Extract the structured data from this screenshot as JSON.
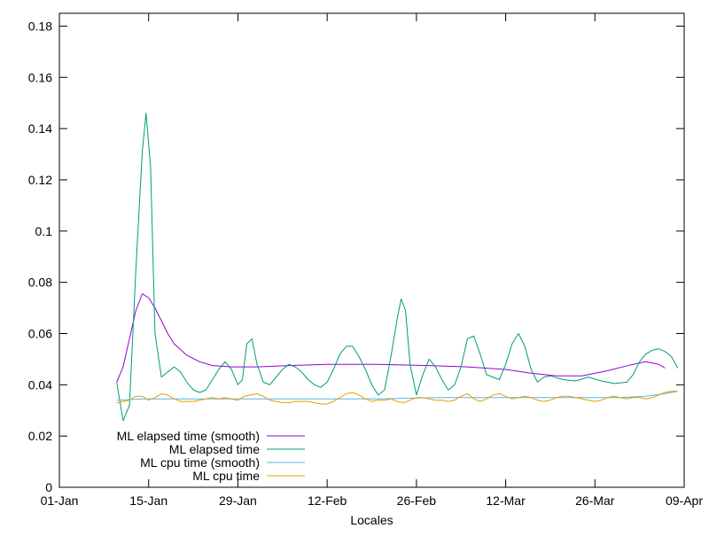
{
  "chart_data": {
    "type": "line",
    "title": "",
    "xlabel": "Locales",
    "ylabel": "",
    "xlim": [
      "2025-01-01",
      "2025-04-09"
    ],
    "ylim": [
      0,
      0.185
    ],
    "x_ticks": [
      {
        "date": "2025-01-01",
        "label": "01-Jan"
      },
      {
        "date": "2025-01-15",
        "label": "15-Jan"
      },
      {
        "date": "2025-01-29",
        "label": "29-Jan"
      },
      {
        "date": "2025-02-12",
        "label": "12-Feb"
      },
      {
        "date": "2025-02-26",
        "label": "26-Feb"
      },
      {
        "date": "2025-03-12",
        "label": "12-Mar"
      },
      {
        "date": "2025-03-26",
        "label": "26-Mar"
      },
      {
        "date": "2025-04-09",
        "label": "09-Apr"
      }
    ],
    "y_ticks": [
      {
        "value": 0,
        "label": "0"
      },
      {
        "value": 0.02,
        "label": "0.02"
      },
      {
        "value": 0.04,
        "label": "0.04"
      },
      {
        "value": 0.06,
        "label": "0.06"
      },
      {
        "value": 0.08,
        "label": "0.08"
      },
      {
        "value": 0.1,
        "label": "0.1"
      },
      {
        "value": 0.12,
        "label": "0.12"
      },
      {
        "value": 0.14,
        "label": "0.14"
      },
      {
        "value": 0.16,
        "label": "0.16"
      },
      {
        "value": 0.18,
        "label": "0.18"
      }
    ],
    "grid": false,
    "legend_position": "bottom-left",
    "series": [
      {
        "name": "ML elapsed time (smooth)",
        "color": "#9400d3",
        "points": [
          [
            "2025-01-10",
            0.041
          ],
          [
            "2025-01-11",
            0.047
          ],
          [
            "2025-01-12",
            0.058
          ],
          [
            "2025-01-13",
            0.069
          ],
          [
            "2025-01-14",
            0.0755
          ],
          [
            "2025-01-15",
            0.074
          ],
          [
            "2025-01-16",
            0.07
          ],
          [
            "2025-01-17",
            0.065
          ],
          [
            "2025-01-18",
            0.06
          ],
          [
            "2025-01-19",
            0.056
          ],
          [
            "2025-01-21",
            0.0515
          ],
          [
            "2025-01-23",
            0.049
          ],
          [
            "2025-01-25",
            0.0475
          ],
          [
            "2025-01-28",
            0.047
          ],
          [
            "2025-02-01",
            0.047
          ],
          [
            "2025-02-06",
            0.0475
          ],
          [
            "2025-02-12",
            0.048
          ],
          [
            "2025-02-20",
            0.048
          ],
          [
            "2025-02-28",
            0.0475
          ],
          [
            "2025-03-06",
            0.047
          ],
          [
            "2025-03-12",
            0.046
          ],
          [
            "2025-03-16",
            0.0445
          ],
          [
            "2025-03-20",
            0.0435
          ],
          [
            "2025-03-24",
            0.0435
          ],
          [
            "2025-03-28",
            0.0455
          ],
          [
            "2025-04-01",
            0.048
          ],
          [
            "2025-04-03",
            0.049
          ],
          [
            "2025-04-05",
            0.048
          ],
          [
            "2025-04-06",
            0.0465
          ]
        ]
      },
      {
        "name": "ML elapsed time",
        "color": "#009e73",
        "points": [
          [
            "2025-01-10",
            0.041
          ],
          [
            "2025-01-11",
            0.026
          ],
          [
            "2025-01-12",
            0.032
          ],
          [
            "2025-01-13",
            0.085
          ],
          [
            "2025-01-14",
            0.131
          ],
          [
            "2025-01-14.6",
            0.146
          ],
          [
            "2025-01-15.3",
            0.125
          ],
          [
            "2025-01-16",
            0.06
          ],
          [
            "2025-01-17",
            0.043
          ],
          [
            "2025-01-18",
            0.045
          ],
          [
            "2025-01-19",
            0.047
          ],
          [
            "2025-01-20",
            0.045
          ],
          [
            "2025-01-21",
            0.041
          ],
          [
            "2025-01-22",
            0.038
          ],
          [
            "2025-01-23",
            0.037
          ],
          [
            "2025-01-24",
            0.038
          ],
          [
            "2025-01-25",
            0.042
          ],
          [
            "2025-01-26",
            0.046
          ],
          [
            "2025-01-27",
            0.049
          ],
          [
            "2025-01-28",
            0.046
          ],
          [
            "2025-01-29",
            0.04
          ],
          [
            "2025-01-29.7",
            0.042
          ],
          [
            "2025-01-30.4",
            0.056
          ],
          [
            "2025-01-31.2",
            0.058
          ],
          [
            "2025-02-01",
            0.048
          ],
          [
            "2025-02-02",
            0.041
          ],
          [
            "2025-02-03",
            0.04
          ],
          [
            "2025-02-04",
            0.043
          ],
          [
            "2025-02-05",
            0.046
          ],
          [
            "2025-02-06",
            0.048
          ],
          [
            "2025-02-07",
            0.047
          ],
          [
            "2025-02-08",
            0.045
          ],
          [
            "2025-02-09",
            0.042
          ],
          [
            "2025-02-10",
            0.04
          ],
          [
            "2025-02-11",
            0.039
          ],
          [
            "2025-02-12",
            0.041
          ],
          [
            "2025-02-13",
            0.046
          ],
          [
            "2025-02-14",
            0.052
          ],
          [
            "2025-02-15",
            0.055
          ],
          [
            "2025-02-16",
            0.055
          ],
          [
            "2025-02-17",
            0.051
          ],
          [
            "2025-02-18",
            0.046
          ],
          [
            "2025-02-19",
            0.04
          ],
          [
            "2025-02-20",
            0.036
          ],
          [
            "2025-02-21",
            0.038
          ],
          [
            "2025-02-22",
            0.051
          ],
          [
            "2025-02-23",
            0.066
          ],
          [
            "2025-02-23.6",
            0.0735
          ],
          [
            "2025-02-24.3",
            0.069
          ],
          [
            "2025-02-25",
            0.048
          ],
          [
            "2025-02-26",
            0.036
          ],
          [
            "2025-02-27",
            0.044
          ],
          [
            "2025-02-28",
            0.05
          ],
          [
            "2025-03-01",
            0.047
          ],
          [
            "2025-03-02",
            0.042
          ],
          [
            "2025-03-03",
            0.038
          ],
          [
            "2025-03-04",
            0.04
          ],
          [
            "2025-03-05",
            0.047
          ],
          [
            "2025-03-06",
            0.058
          ],
          [
            "2025-03-07",
            0.059
          ],
          [
            "2025-03-08",
            0.052
          ],
          [
            "2025-03-09",
            0.044
          ],
          [
            "2025-03-10",
            0.043
          ],
          [
            "2025-03-11",
            0.042
          ],
          [
            "2025-03-12",
            0.048
          ],
          [
            "2025-03-13",
            0.056
          ],
          [
            "2025-03-14",
            0.06
          ],
          [
            "2025-03-15",
            0.055
          ],
          [
            "2025-03-16",
            0.046
          ],
          [
            "2025-03-17",
            0.041
          ],
          [
            "2025-03-18",
            0.043
          ],
          [
            "2025-03-19",
            0.0435
          ],
          [
            "2025-03-21",
            0.042
          ],
          [
            "2025-03-23",
            0.0415
          ],
          [
            "2025-03-25",
            0.043
          ],
          [
            "2025-03-27",
            0.0415
          ],
          [
            "2025-03-29",
            0.0405
          ],
          [
            "2025-03-31",
            0.041
          ],
          [
            "2025-04-01",
            0.044
          ],
          [
            "2025-04-02",
            0.049
          ],
          [
            "2025-04-03",
            0.052
          ],
          [
            "2025-04-04",
            0.0535
          ],
          [
            "2025-04-05",
            0.054
          ],
          [
            "2025-04-06",
            0.053
          ],
          [
            "2025-04-07",
            0.051
          ],
          [
            "2025-04-08",
            0.0465
          ]
        ]
      },
      {
        "name": "ML cpu time (smooth)",
        "color": "#56b4e9",
        "points": [
          [
            "2025-01-10",
            0.034
          ],
          [
            "2025-01-14",
            0.0345
          ],
          [
            "2025-01-20",
            0.0345
          ],
          [
            "2025-01-30",
            0.0345
          ],
          [
            "2025-02-10",
            0.0345
          ],
          [
            "2025-02-20",
            0.0345
          ],
          [
            "2025-03-01",
            0.035
          ],
          [
            "2025-03-12",
            0.035
          ],
          [
            "2025-03-22",
            0.035
          ],
          [
            "2025-03-30",
            0.035
          ],
          [
            "2025-04-03",
            0.0355
          ],
          [
            "2025-04-06",
            0.0365
          ],
          [
            "2025-04-08",
            0.0375
          ]
        ]
      },
      {
        "name": "ML cpu time",
        "color": "#e69f00",
        "points": [
          [
            "2025-01-10",
            0.033
          ],
          [
            "2025-01-11",
            0.0335
          ],
          [
            "2025-01-12",
            0.034
          ],
          [
            "2025-01-13",
            0.0355
          ],
          [
            "2025-01-14",
            0.0355
          ],
          [
            "2025-01-15",
            0.034
          ],
          [
            "2025-01-16",
            0.035
          ],
          [
            "2025-01-17",
            0.0365
          ],
          [
            "2025-01-18",
            0.036
          ],
          [
            "2025-01-19",
            0.0345
          ],
          [
            "2025-01-20",
            0.0335
          ],
          [
            "2025-01-21",
            0.0335
          ],
          [
            "2025-01-22",
            0.0335
          ],
          [
            "2025-01-23",
            0.034
          ],
          [
            "2025-01-24",
            0.0345
          ],
          [
            "2025-01-25",
            0.035
          ],
          [
            "2025-01-26",
            0.0345
          ],
          [
            "2025-01-27",
            0.035
          ],
          [
            "2025-01-28",
            0.0345
          ],
          [
            "2025-01-29",
            0.034
          ],
          [
            "2025-01-30",
            0.0355
          ],
          [
            "2025-01-31",
            0.036
          ],
          [
            "2025-02-01",
            0.0365
          ],
          [
            "2025-02-02",
            0.0355
          ],
          [
            "2025-02-03",
            0.034
          ],
          [
            "2025-02-04",
            0.0335
          ],
          [
            "2025-02-05",
            0.033
          ],
          [
            "2025-02-06",
            0.033
          ],
          [
            "2025-02-07",
            0.0335
          ],
          [
            "2025-02-08",
            0.0335
          ],
          [
            "2025-02-09",
            0.0335
          ],
          [
            "2025-02-10",
            0.033
          ],
          [
            "2025-02-11",
            0.0325
          ],
          [
            "2025-02-12",
            0.0325
          ],
          [
            "2025-02-13",
            0.0335
          ],
          [
            "2025-02-14",
            0.035
          ],
          [
            "2025-02-15",
            0.0365
          ],
          [
            "2025-02-16",
            0.037
          ],
          [
            "2025-02-17",
            0.036
          ],
          [
            "2025-02-18",
            0.0345
          ],
          [
            "2025-02-19",
            0.0335
          ],
          [
            "2025-02-20",
            0.034
          ],
          [
            "2025-02-21",
            0.034
          ],
          [
            "2025-02-22",
            0.0345
          ],
          [
            "2025-02-23",
            0.0335
          ],
          [
            "2025-02-24",
            0.033
          ],
          [
            "2025-02-25",
            0.034
          ],
          [
            "2025-02-26",
            0.035
          ],
          [
            "2025-02-27",
            0.035
          ],
          [
            "2025-02-28",
            0.0345
          ],
          [
            "2025-03-01",
            0.034
          ],
          [
            "2025-03-02",
            0.034
          ],
          [
            "2025-03-03",
            0.0335
          ],
          [
            "2025-03-04",
            0.034
          ],
          [
            "2025-03-05",
            0.0355
          ],
          [
            "2025-03-06",
            0.0365
          ],
          [
            "2025-03-07",
            0.0345
          ],
          [
            "2025-03-08",
            0.0335
          ],
          [
            "2025-03-09",
            0.0345
          ],
          [
            "2025-03-10",
            0.036
          ],
          [
            "2025-03-11",
            0.0365
          ],
          [
            "2025-03-12",
            0.0355
          ],
          [
            "2025-03-13",
            0.0345
          ],
          [
            "2025-03-14",
            0.035
          ],
          [
            "2025-03-15",
            0.0355
          ],
          [
            "2025-03-16",
            0.035
          ],
          [
            "2025-03-17",
            0.034
          ],
          [
            "2025-03-18",
            0.0335
          ],
          [
            "2025-03-19",
            0.034
          ],
          [
            "2025-03-20",
            0.035
          ],
          [
            "2025-03-21",
            0.0355
          ],
          [
            "2025-03-22",
            0.0355
          ],
          [
            "2025-03-23",
            0.035
          ],
          [
            "2025-03-24",
            0.0345
          ],
          [
            "2025-03-25",
            0.034
          ],
          [
            "2025-03-26",
            0.0335
          ],
          [
            "2025-03-27",
            0.034
          ],
          [
            "2025-03-28",
            0.035
          ],
          [
            "2025-03-29",
            0.0355
          ],
          [
            "2025-03-30",
            0.035
          ],
          [
            "2025-03-31",
            0.0345
          ],
          [
            "2025-04-01",
            0.035
          ],
          [
            "2025-04-02",
            0.035
          ],
          [
            "2025-04-03",
            0.0345
          ],
          [
            "2025-04-04",
            0.035
          ],
          [
            "2025-04-05",
            0.036
          ],
          [
            "2025-04-06",
            0.037
          ],
          [
            "2025-04-07",
            0.0375
          ],
          [
            "2025-04-08",
            0.0375
          ]
        ]
      }
    ]
  }
}
